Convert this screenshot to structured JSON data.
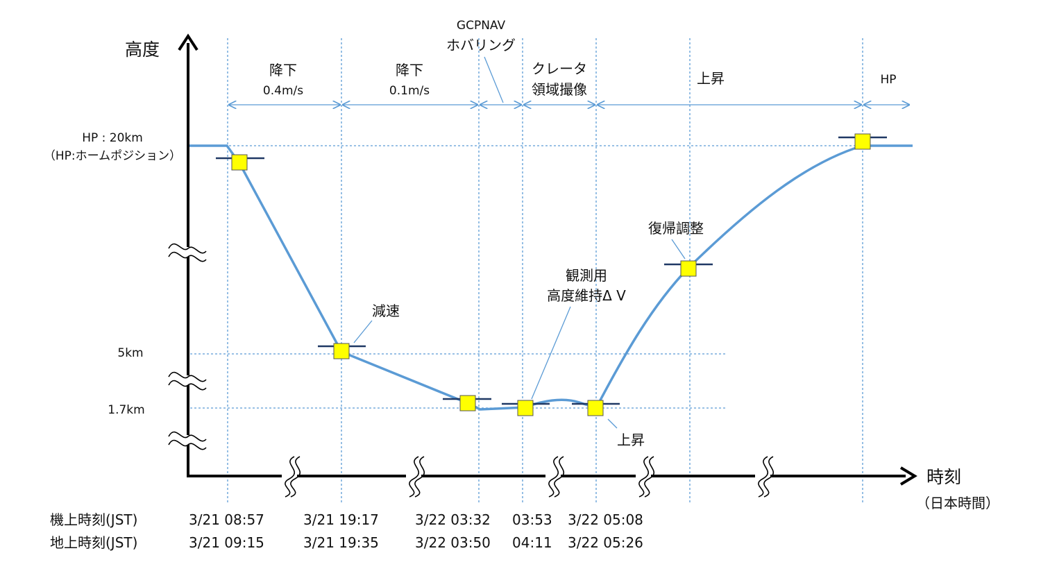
{
  "axes": {
    "y_label": "高度",
    "x_label": "時刻",
    "x_sublabel": "（日本時間）"
  },
  "altitude_levels": {
    "hp_label": "HP : 20km",
    "hp_note": "（HP:ホームポジション）",
    "mid_label": "5km",
    "low_label": "1.7km"
  },
  "phases": [
    {
      "line1": "降下",
      "line2": "0.4m/s"
    },
    {
      "line1": "降下",
      "line2": "0.1m/s"
    },
    {
      "line1": "GCPNAV",
      "line2": "ホバリング"
    },
    {
      "line1": "クレータ",
      "line2": "領域撮像"
    },
    {
      "line1": "上昇",
      "line2": ""
    },
    {
      "line1": "HP",
      "line2": ""
    }
  ],
  "annotations": {
    "decel": "減速",
    "dv_line1": "観測用",
    "dv_line2": "高度維持Δ V",
    "ascent": "上昇",
    "return_adjust": "復帰調整"
  },
  "times": {
    "onboard_label": "機上時刻(JST)",
    "ground_label": "地上時刻(JST)",
    "onboard": [
      "3/21 08:57",
      "3/21 19:17",
      "3/22 03:32",
      "03:53",
      "3/22 05:08"
    ],
    "ground": [
      "3/21 09:15",
      "3/21 19:35",
      "3/22 03:50",
      "04:11",
      "3/22 05:26"
    ]
  },
  "icons": {
    "axis_arrow": "arrow-head-icon",
    "axis_break": "wavy-break-icon",
    "event_marker": "yellow-square-marker-icon"
  },
  "colors": {
    "profile_line": "#5b9bd5",
    "guide_lines": "#5b9bd5",
    "marker_fill": "#ffff00",
    "marker_bar": "#1f3864",
    "axis": "#000000"
  }
}
